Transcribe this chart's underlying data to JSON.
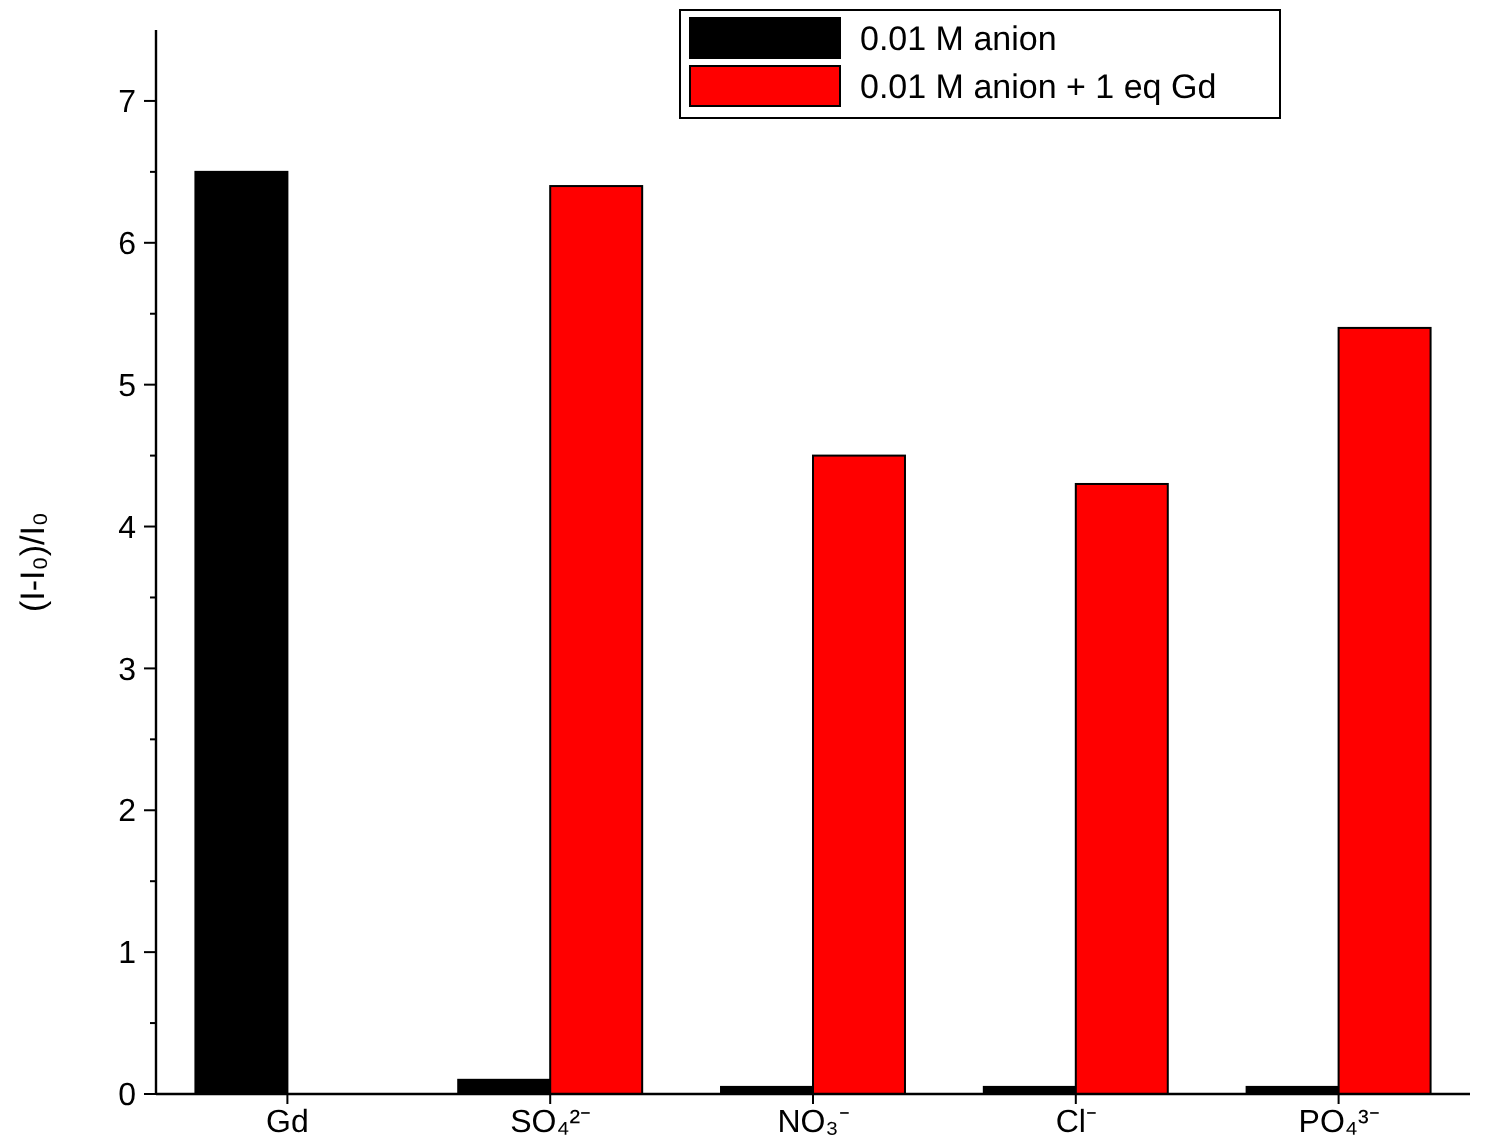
{
  "chart_data": {
    "type": "bar",
    "ylabel": "(I-I₀)/I₀",
    "categories": [
      "Gd",
      "SO₄²⁻",
      "NO₃⁻",
      "Cl⁻",
      "PO₄³⁻"
    ],
    "series": [
      {
        "name": "0.01 M anion",
        "color": "#000000",
        "values": [
          6.5,
          0.1,
          0.05,
          0.05,
          0.05
        ]
      },
      {
        "name": "0.01 M anion + 1 eq Gd",
        "color": "#ff0000",
        "values": [
          null,
          6.4,
          4.5,
          4.3,
          5.4
        ]
      }
    ],
    "ylim": [
      0,
      7.5
    ],
    "yticks": [
      0,
      {
        "value": 0.5,
        "label": null
      },
      1,
      {
        "value": 1.5,
        "label": null
      },
      2,
      {
        "value": 2.5,
        "label": null
      },
      3,
      {
        "value": 3.5,
        "label": null
      },
      4,
      {
        "value": 4.5,
        "label": null
      },
      5,
      {
        "value": 5.5,
        "label": null
      },
      6,
      {
        "value": 6.5,
        "label": null
      },
      7
    ],
    "grid": false,
    "legend": "top right"
  }
}
